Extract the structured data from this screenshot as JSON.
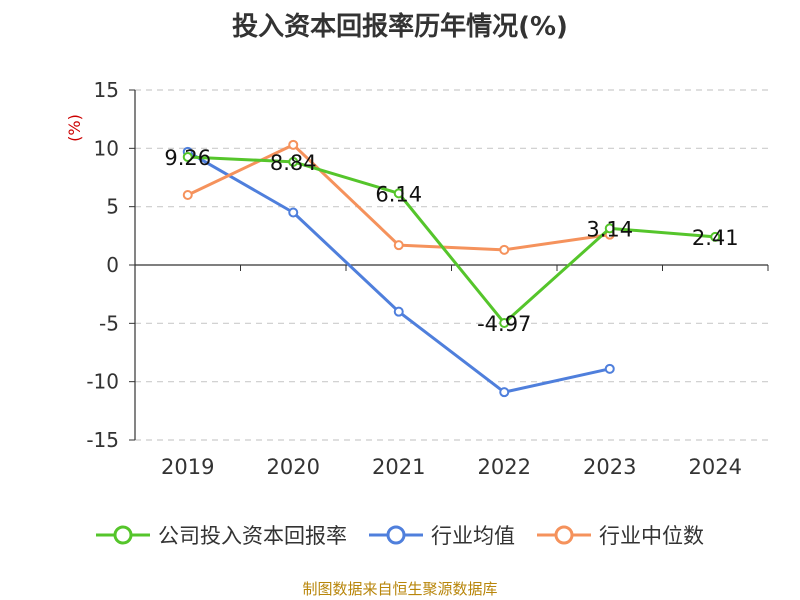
{
  "title": "投入资本回报率历年情况(%)",
  "unit_label": "(%)",
  "source_note": "制图数据来自恒生聚源数据库",
  "colors": {
    "company": "#55c52b",
    "industry_avg": "#4f7fdc",
    "industry_median": "#f5925c",
    "unit_label": "#cc0000",
    "source": "#b8860b"
  },
  "chart_data": {
    "type": "line",
    "title": "投入资本回报率历年情况(%)",
    "ylabel": "(%)",
    "ylim": [
      -15,
      15
    ],
    "yticks": [
      15,
      10,
      5,
      0,
      -5,
      -10,
      -15
    ],
    "grid": true,
    "legend_position": "bottom",
    "categories": [
      "2019",
      "2020",
      "2021",
      "2022",
      "2023",
      "2024"
    ],
    "series": [
      {
        "name": "公司投入资本回报率",
        "values": [
          9.26,
          8.84,
          6.14,
          -4.97,
          3.14,
          2.41
        ],
        "labels": [
          "9.26",
          "8.84",
          "6.14",
          "-4.97",
          "3.14",
          "2.41"
        ]
      },
      {
        "name": "行业均值",
        "values": [
          9.7,
          4.5,
          -4.0,
          -10.9,
          -8.9,
          null
        ]
      },
      {
        "name": "行业中位数",
        "values": [
          6.0,
          10.3,
          1.7,
          1.3,
          2.6,
          null
        ]
      }
    ]
  }
}
